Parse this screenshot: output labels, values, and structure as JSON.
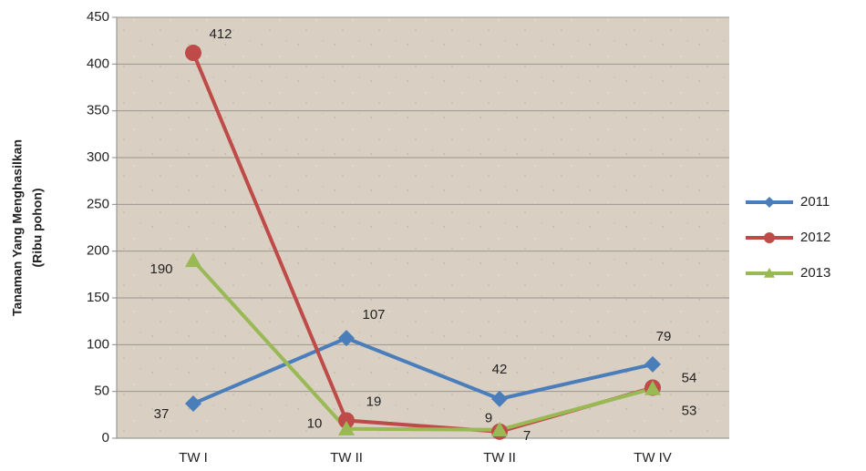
{
  "chart_data": {
    "type": "line",
    "ylabel": [
      "Tanaman Yang Menghasilkan",
      "(Ribu pohon)"
    ],
    "categories": [
      "TW I",
      "TW II",
      "TW II",
      "TW IV"
    ],
    "series": [
      {
        "name": "2011",
        "color": "#4a7ebb",
        "marker": "diamond",
        "values": [
          37,
          107,
          42,
          79
        ]
      },
      {
        "name": "2012",
        "color": "#be4b48",
        "marker": "circle",
        "values": [
          412,
          19,
          7,
          54
        ]
      },
      {
        "name": "2013",
        "color": "#98b954",
        "marker": "triangle",
        "values": [
          190,
          10,
          9,
          53
        ]
      }
    ],
    "ylim": [
      0,
      450
    ],
    "yticks": [
      0,
      50,
      100,
      150,
      200,
      250,
      300,
      350,
      400,
      450
    ],
    "grid": true,
    "legend": "right"
  }
}
